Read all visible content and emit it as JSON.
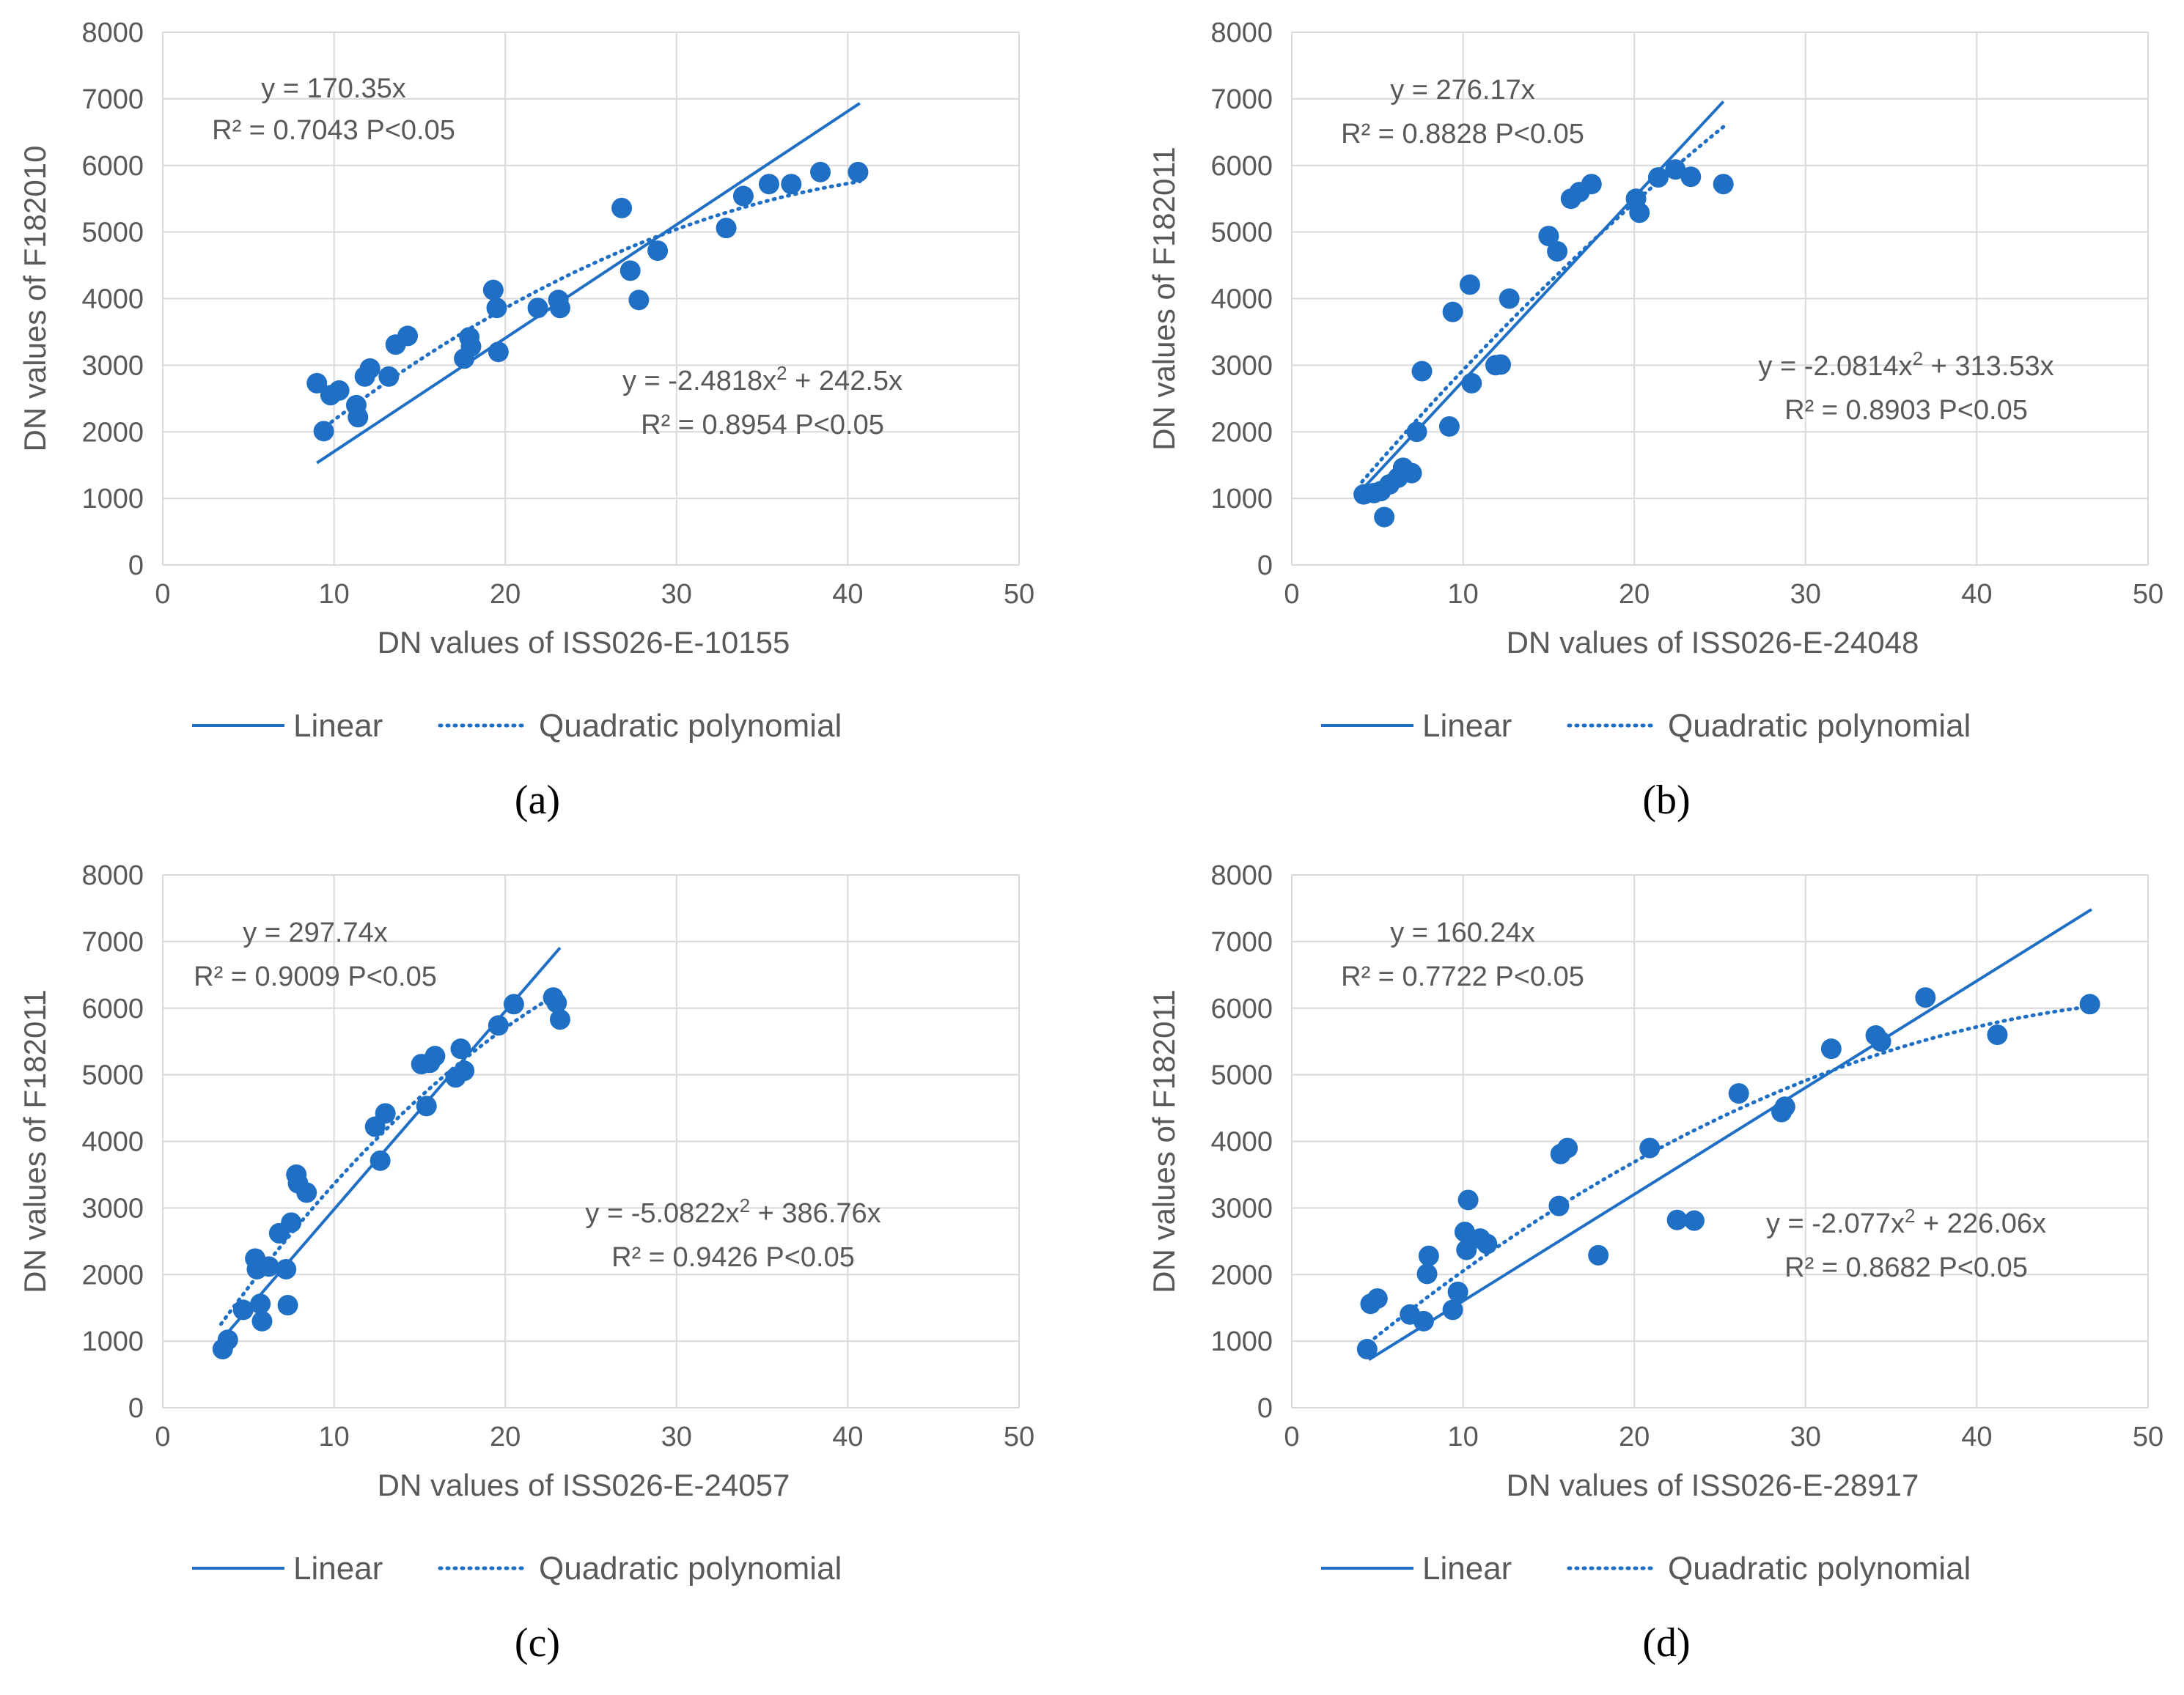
{
  "colors": {
    "series": "#1f6fc5",
    "text": "#595959",
    "grid": "#d9d9d9"
  },
  "chart_data": [
    {
      "type": "scatter",
      "panel_label": "(a)",
      "xlabel": "DN values of ISS026-E-10155",
      "ylabel": "DN values of F182010",
      "xlim": [
        0,
        50
      ],
      "ylim": [
        0,
        8000
      ],
      "x_ticks": [
        0,
        10,
        20,
        30,
        40,
        50
      ],
      "y_ticks": [
        0,
        1000,
        2000,
        3000,
        4000,
        5000,
        6000,
        7000,
        8000
      ],
      "linear_eq": "y = 170.35x",
      "linear_r2": "R² = 0.7043  P<0.05",
      "quad_eq_main": "y = -2.4818x",
      "quad_eq_sup": "2",
      "quad_eq_tail": " + 242.5x",
      "quad_r2": "R² = 0.8954  P<0.05",
      "linear_fit": {
        "slope": 170.35,
        "x_range": [
          9.0,
          40.7
        ]
      },
      "quad_fit": {
        "a": -2.4818,
        "b": 242.5,
        "x_range": [
          9.5,
          40.7
        ]
      },
      "legend": [
        "Linear",
        "Quadratic polynomial"
      ],
      "points": [
        [
          9.0,
          2730
        ],
        [
          9.4,
          2010
        ],
        [
          9.8,
          2550
        ],
        [
          10.3,
          2620
        ],
        [
          11.3,
          2400
        ],
        [
          11.4,
          2220
        ],
        [
          11.8,
          2830
        ],
        [
          12.1,
          2950
        ],
        [
          13.2,
          2830
        ],
        [
          13.6,
          3310
        ],
        [
          14.3,
          3440
        ],
        [
          17.6,
          3100
        ],
        [
          17.9,
          3420
        ],
        [
          18.0,
          3280
        ],
        [
          19.3,
          4130
        ],
        [
          19.5,
          3860
        ],
        [
          19.6,
          3200
        ],
        [
          21.9,
          3860
        ],
        [
          23.1,
          3980
        ],
        [
          23.2,
          3860
        ],
        [
          26.8,
          5360
        ],
        [
          27.3,
          4420
        ],
        [
          27.8,
          3980
        ],
        [
          28.9,
          4720
        ],
        [
          32.9,
          5060
        ],
        [
          33.9,
          5540
        ],
        [
          35.4,
          5720
        ],
        [
          36.7,
          5720
        ],
        [
          38.4,
          5900
        ],
        [
          40.6,
          5900
        ]
      ]
    },
    {
      "type": "scatter",
      "panel_label": "(b)",
      "xlabel": "DN values of ISS026-E-24048",
      "ylabel": "DN values of F182011",
      "xlim": [
        0,
        50
      ],
      "ylim": [
        0,
        8000
      ],
      "x_ticks": [
        0,
        10,
        20,
        30,
        40,
        50
      ],
      "y_ticks": [
        0,
        1000,
        2000,
        3000,
        4000,
        5000,
        6000,
        7000,
        8000
      ],
      "linear_eq": "y = 276.17x",
      "linear_r2": "R² = 0.8828  P<0.05",
      "quad_eq_main": "y = -2.0814x",
      "quad_eq_sup": "2",
      "quad_eq_tail": " + 313.53x",
      "quad_r2": "R² = 0.8903  P<0.05",
      "linear_fit": {
        "slope": 276.17,
        "x_range": [
          4.1,
          25.2
        ]
      },
      "quad_fit": {
        "a": -2.0814,
        "b": 313.53,
        "x_range": [
          4.1,
          25.2
        ]
      },
      "legend": [
        "Linear",
        "Quadratic polynomial"
      ],
      "points": [
        [
          4.2,
          1060
        ],
        [
          4.8,
          1080
        ],
        [
          5.2,
          1110
        ],
        [
          5.4,
          720
        ],
        [
          5.7,
          1210
        ],
        [
          6.2,
          1310
        ],
        [
          6.5,
          1460
        ],
        [
          7.0,
          1380
        ],
        [
          7.3,
          2000
        ],
        [
          7.6,
          2910
        ],
        [
          9.2,
          2080
        ],
        [
          9.4,
          3800
        ],
        [
          10.4,
          4210
        ],
        [
          10.5,
          2730
        ],
        [
          11.9,
          3000
        ],
        [
          12.2,
          3010
        ],
        [
          12.7,
          4000
        ],
        [
          15.0,
          4940
        ],
        [
          15.5,
          4710
        ],
        [
          16.3,
          5500
        ],
        [
          16.8,
          5600
        ],
        [
          17.5,
          5720
        ],
        [
          20.1,
          5500
        ],
        [
          20.3,
          5290
        ],
        [
          21.4,
          5820
        ],
        [
          22.4,
          5940
        ],
        [
          23.3,
          5830
        ],
        [
          25.2,
          5720
        ]
      ]
    },
    {
      "type": "scatter",
      "panel_label": "(c)",
      "xlabel": "DN values of ISS026-E-24057",
      "ylabel": "DN values of F182011",
      "xlim": [
        0,
        50
      ],
      "ylim": [
        0,
        8000
      ],
      "x_ticks": [
        0,
        10,
        20,
        30,
        40,
        50
      ],
      "y_ticks": [
        0,
        1000,
        2000,
        3000,
        4000,
        5000,
        6000,
        7000,
        8000
      ],
      "linear_eq": "y = 297.74x",
      "linear_r2": "R² = 0.9009  P<0.05",
      "quad_eq_main": "y = -5.0822x",
      "quad_eq_sup": "2",
      "quad_eq_tail": " + 386.76x",
      "quad_r2": "R² = 0.9426  P<0.05",
      "linear_fit": {
        "slope": 297.74,
        "x_range": [
          3.5,
          23.2
        ]
      },
      "quad_fit": {
        "a": -5.0822,
        "b": 386.76,
        "x_range": [
          3.4,
          23.2
        ]
      },
      "legend": [
        "Linear",
        "Quadratic polynomial"
      ],
      "points": [
        [
          3.5,
          880
        ],
        [
          3.8,
          1020
        ],
        [
          4.7,
          1470
        ],
        [
          5.4,
          2240
        ],
        [
          5.5,
          2080
        ],
        [
          5.7,
          1560
        ],
        [
          5.8,
          1300
        ],
        [
          6.2,
          2120
        ],
        [
          6.8,
          2620
        ],
        [
          7.2,
          2080
        ],
        [
          7.3,
          1540
        ],
        [
          7.5,
          2780
        ],
        [
          7.8,
          3500
        ],
        [
          7.9,
          3370
        ],
        [
          8.4,
          3230
        ],
        [
          12.4,
          4220
        ],
        [
          12.7,
          3710
        ],
        [
          13.0,
          4420
        ],
        [
          15.1,
          5160
        ],
        [
          15.4,
          4530
        ],
        [
          15.6,
          5180
        ],
        [
          15.9,
          5280
        ],
        [
          17.1,
          4960
        ],
        [
          17.4,
          5390
        ],
        [
          17.6,
          5060
        ],
        [
          19.6,
          5740
        ],
        [
          20.5,
          6060
        ],
        [
          22.8,
          6160
        ],
        [
          23.0,
          6080
        ],
        [
          23.2,
          5830
        ]
      ]
    },
    {
      "type": "scatter",
      "panel_label": "(d)",
      "xlabel": "DN values of ISS026-E-28917",
      "ylabel": "DN values of F182011",
      "xlim": [
        0,
        50
      ],
      "ylim": [
        0,
        8000
      ],
      "x_ticks": [
        0,
        10,
        20,
        30,
        40,
        50
      ],
      "y_ticks": [
        0,
        1000,
        2000,
        3000,
        4000,
        5000,
        6000,
        7000,
        8000
      ],
      "linear_eq": "y = 160.24x",
      "linear_r2": "R² = 0.7722  P<0.05",
      "quad_eq_main": "y = -2.077x",
      "quad_eq_sup": "2",
      "quad_eq_tail": " + 226.06x",
      "quad_r2": "R² = 0.8682  P<0.05",
      "linear_fit": {
        "slope": 160.24,
        "x_range": [
          4.5,
          46.7
        ]
      },
      "quad_fit": {
        "a": -2.077,
        "b": 226.06,
        "x_range": [
          4.5,
          46.7
        ]
      },
      "legend": [
        "Linear",
        "Quadratic polynomial"
      ],
      "points": [
        [
          4.4,
          880
        ],
        [
          4.6,
          1560
        ],
        [
          5.0,
          1640
        ],
        [
          6.9,
          1400
        ],
        [
          7.7,
          1300
        ],
        [
          7.9,
          2010
        ],
        [
          8.0,
          2280
        ],
        [
          9.4,
          1470
        ],
        [
          9.7,
          1740
        ],
        [
          10.1,
          2640
        ],
        [
          10.2,
          2370
        ],
        [
          10.3,
          3120
        ],
        [
          11.0,
          2540
        ],
        [
          11.4,
          2460
        ],
        [
          15.6,
          3030
        ],
        [
          15.7,
          3810
        ],
        [
          16.1,
          3900
        ],
        [
          17.9,
          2290
        ],
        [
          20.9,
          3900
        ],
        [
          22.5,
          2820
        ],
        [
          23.5,
          2810
        ],
        [
          26.1,
          4720
        ],
        [
          28.6,
          4440
        ],
        [
          28.8,
          4520
        ],
        [
          31.5,
          5390
        ],
        [
          34.1,
          5590
        ],
        [
          34.4,
          5500
        ],
        [
          37.0,
          6160
        ],
        [
          41.2,
          5600
        ],
        [
          46.6,
          6060
        ]
      ]
    }
  ]
}
